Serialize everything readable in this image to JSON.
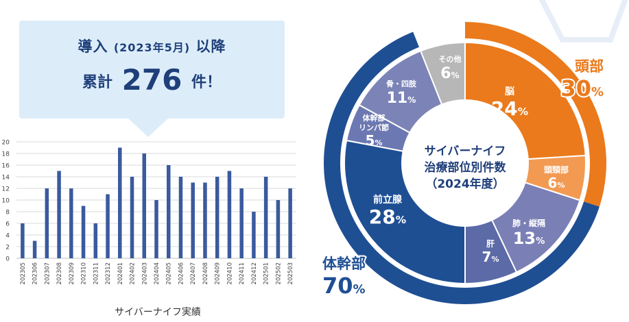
{
  "callout": {
    "line1_a": "導入",
    "line1_b": "(2023年5月)",
    "line1_c": "以降",
    "line2_a": "累計",
    "line2_num": "276",
    "line2_b": "件！"
  },
  "colors": {
    "bar": "#3a5a9e",
    "head_outer": "#ea7a1c",
    "trunk_outer": "#1f4f93",
    "other": "#b7b7b7",
    "brain": "#ea7a1c",
    "headneck": "#f29a52",
    "lung": "#7a7fb5",
    "liver": "#5c6aa8",
    "prostate": "#1f4f93",
    "lymph": "#6c78b1",
    "bone": "#7c84b7",
    "callout_bg": "#dcedf9"
  },
  "chart_data": [
    {
      "type": "bar",
      "title": "サイバーナイフ実績",
      "categories": [
        "202305",
        "202306",
        "202307",
        "202308",
        "202309",
        "202310",
        "202311",
        "202312",
        "202401",
        "202402",
        "202403",
        "202404",
        "202405",
        "202406",
        "202407",
        "202408",
        "202409",
        "202410",
        "202411",
        "202412",
        "202501",
        "202502",
        "202503"
      ],
      "values": [
        6,
        3,
        12,
        15,
        12,
        9,
        6,
        11,
        19,
        14,
        18,
        10,
        16,
        14,
        13,
        13,
        14,
        15,
        12,
        8,
        14,
        10,
        12
      ],
      "ylim": [
        0,
        20
      ],
      "yticks": [
        0,
        2,
        4,
        6,
        8,
        10,
        12,
        14,
        16,
        18,
        20
      ],
      "grid": true
    },
    {
      "type": "pie",
      "title_lines": [
        "サイバーナイフ",
        "治療部位別件数",
        "（2024年度）"
      ],
      "outer": [
        {
          "name": "頭部",
          "value": 30,
          "label": "30",
          "unit": "%"
        },
        {
          "name": "体幹部",
          "value": 70,
          "label": "70",
          "unit": "%"
        }
      ],
      "inner": [
        {
          "name": "脳",
          "value": 24,
          "label": "24",
          "unit": "%"
        },
        {
          "name": "頭頸部",
          "value": 6,
          "label": "6",
          "unit": "%"
        },
        {
          "name": "肺・縦隔",
          "value": 13,
          "label": "13",
          "unit": "%"
        },
        {
          "name": "肝",
          "value": 7,
          "label": "7",
          "unit": "%"
        },
        {
          "name": "前立腺",
          "value": 28,
          "label": "28",
          "unit": "%"
        },
        {
          "name": "体幹部リンパ節",
          "name_lines": [
            "体幹部",
            "リンパ節"
          ],
          "value": 5,
          "label": "5",
          "unit": "%"
        },
        {
          "name": "骨・四肢",
          "value": 11,
          "label": "11",
          "unit": "%"
        },
        {
          "name": "その他",
          "value": 6,
          "label": "6",
          "unit": "%"
        }
      ]
    }
  ]
}
